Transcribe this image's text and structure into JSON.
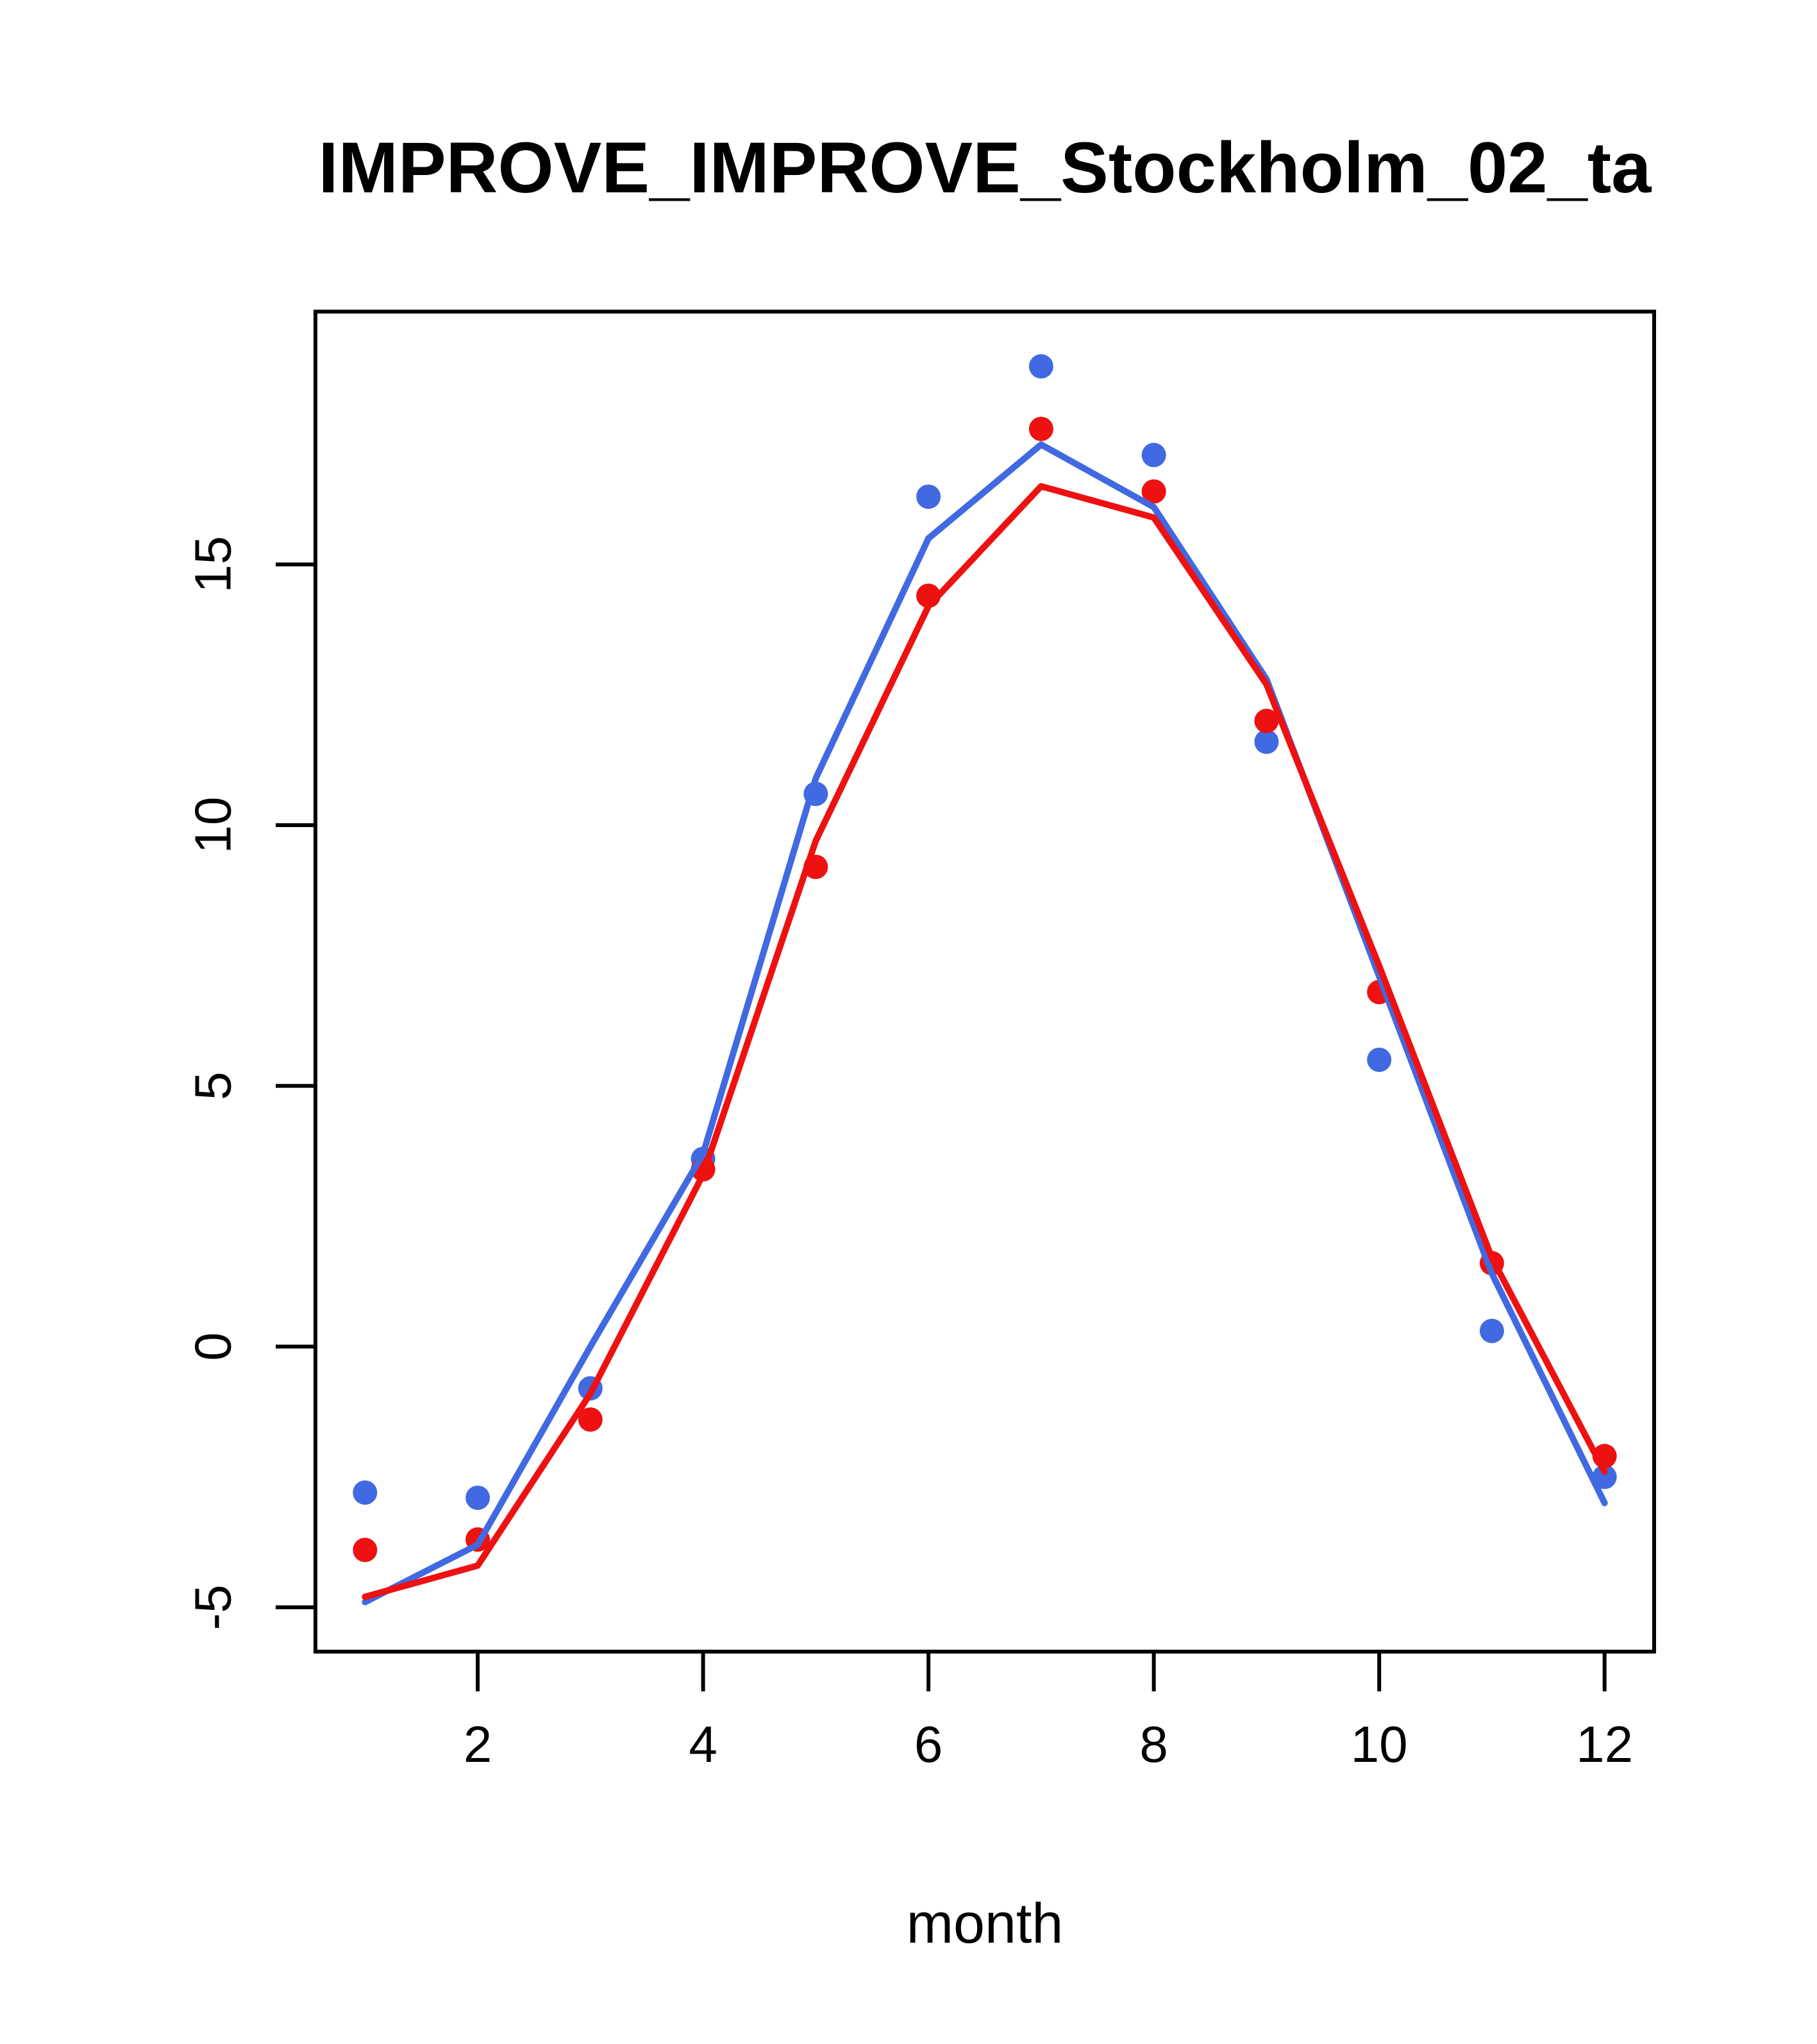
{
  "title": "IMPROVE_IMPROVE_Stockholm_02_ta",
  "chart_data": {
    "type": "line",
    "title": "IMPROVE_IMPROVE_Stockholm_02_ta",
    "xlabel": "month",
    "ylabel": "",
    "x": [
      1,
      2,
      3,
      4,
      5,
      6,
      7,
      8,
      9,
      10,
      11,
      12
    ],
    "xticks": [
      2,
      4,
      6,
      8,
      10,
      12
    ],
    "yticks": [
      -5,
      0,
      5,
      10,
      15
    ],
    "xlim": [
      0.56,
      12.44
    ],
    "ylim": [
      -5.85,
      19.85
    ],
    "grid": false,
    "legend": "none",
    "colors": {
      "blue": "#4169E1",
      "red": "#EE1111"
    },
    "series": [
      {
        "name": "blue-points",
        "role": "scatter",
        "color": "blue",
        "values": [
          -2.8,
          -2.9,
          -0.8,
          3.6,
          10.6,
          16.3,
          18.8,
          17.1,
          11.6,
          5.5,
          0.3,
          -2.5
        ]
      },
      {
        "name": "red-points",
        "role": "scatter",
        "color": "red",
        "values": [
          -3.9,
          -3.7,
          -1.4,
          3.4,
          9.2,
          14.4,
          17.6,
          16.4,
          12.0,
          6.8,
          1.6,
          -2.1
        ]
      },
      {
        "name": "blue-line",
        "role": "line",
        "color": "blue",
        "values": [
          -4.9,
          -3.8,
          0.0,
          3.7,
          10.9,
          15.5,
          17.3,
          16.1,
          12.8,
          7.1,
          1.4,
          -3.0
        ]
      },
      {
        "name": "red-line",
        "role": "line",
        "color": "red",
        "values": [
          -4.8,
          -4.2,
          -0.9,
          3.3,
          9.7,
          14.2,
          16.5,
          15.9,
          12.7,
          7.3,
          1.7,
          -2.4
        ]
      }
    ]
  }
}
